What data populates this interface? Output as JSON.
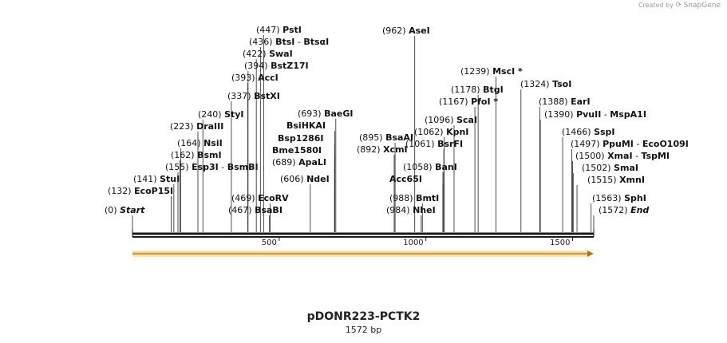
{
  "credit": {
    "created_by": "Created by",
    "brand": "SnapGene"
  },
  "plasmid": {
    "name": "pDONR223-PCTK2",
    "length_label": "1572 bp",
    "length": 1572
  },
  "ruler": {
    "ticks": [
      500,
      1000,
      1500
    ]
  },
  "feature": {
    "start": 1,
    "end": 1572,
    "color": "#f2c35c"
  },
  "sites": [
    {
      "pos": "(0)",
      "name": "Start",
      "bp": 0,
      "style": "endpoint"
    },
    {
      "pos": "(132)",
      "name": "EcoP15I",
      "bp": 132
    },
    {
      "pos": "(141)",
      "name": "StuI",
      "bp": 141
    },
    {
      "pos": "(155)",
      "name": "Esp3I",
      "name2": "BsmBI",
      "bp": 155
    },
    {
      "pos": "(162)",
      "name": "BsmI",
      "bp": 162
    },
    {
      "pos": "(164)",
      "name": "NsiI",
      "bp": 164
    },
    {
      "pos": "(223)",
      "name": "DraIII",
      "bp": 223
    },
    {
      "pos": "(240)",
      "name": "StyI",
      "bp": 240
    },
    {
      "pos": "(337)",
      "name": "BstXI",
      "bp": 337
    },
    {
      "pos": "(393)",
      "name": "AccI",
      "bp": 393
    },
    {
      "pos": "(394)",
      "name": "BstZ17I",
      "bp": 394
    },
    {
      "pos": "(422)",
      "name": "SwaI",
      "bp": 422
    },
    {
      "pos": "(436)",
      "name": "BtsI",
      "name2": "BtsαI",
      "bp": 436
    },
    {
      "pos": "(447)",
      "name": "PstI",
      "bp": 447
    },
    {
      "pos": "(467)",
      "name": "BsaBI",
      "bp": 467
    },
    {
      "pos": "(469)",
      "name": "EcoRV",
      "bp": 469
    },
    {
      "pos": "(606)",
      "name": "NdeI",
      "bp": 606
    },
    {
      "pos": "(689)",
      "name": "ApaLI",
      "bp": 689
    },
    {
      "pos": "",
      "name": "Bme1580I",
      "bp": 689
    },
    {
      "pos": "",
      "name": "Bsp1286I",
      "bp": 689
    },
    {
      "pos": "",
      "name": "BsiHKAI",
      "bp": 689
    },
    {
      "pos": "(693)",
      "name": "BaeGI",
      "bp": 693
    },
    {
      "pos": "(892)",
      "name": "XcmI",
      "bp": 892
    },
    {
      "pos": "(895)",
      "name": "BsaAI",
      "bp": 895
    },
    {
      "pos": "(962)",
      "name": "AseI",
      "bp": 962
    },
    {
      "pos": "(984)",
      "name": "NheI",
      "bp": 984
    },
    {
      "pos": "(988)",
      "name": "BmtI",
      "bp": 988
    },
    {
      "pos": "",
      "name": "Acc65I",
      "bp": 1058
    },
    {
      "pos": "(1058)",
      "name": "BanI",
      "bp": 1058
    },
    {
      "pos": "(1061)",
      "name": "BsrFI",
      "bp": 1061
    },
    {
      "pos": "(1062)",
      "name": "KpnI",
      "bp": 1062
    },
    {
      "pos": "(1096)",
      "name": "ScaI",
      "bp": 1096
    },
    {
      "pos": "(1167)",
      "name": "PfoI",
      "star": "*",
      "bp": 1167
    },
    {
      "pos": "(1178)",
      "name": "BtgI",
      "bp": 1178
    },
    {
      "pos": "(1239)",
      "name": "MscI",
      "star": "*",
      "bp": 1239
    },
    {
      "pos": "(1324)",
      "name": "TsoI",
      "bp": 1324
    },
    {
      "pos": "(1388)",
      "name": "EarI",
      "bp": 1388
    },
    {
      "pos": "(1390)",
      "name": "PvuII",
      "name2": "MspA1I",
      "bp": 1390
    },
    {
      "pos": "(1466)",
      "name": "SspI",
      "bp": 1466
    },
    {
      "pos": "(1497)",
      "name": "PpuMI",
      "name2": "EcoO109I",
      "bp": 1497
    },
    {
      "pos": "(1500)",
      "name": "XmaI",
      "name2": "TspMI",
      "bp": 1500
    },
    {
      "pos": "(1502)",
      "name": "SmaI",
      "bp": 1502
    },
    {
      "pos": "(1515)",
      "name": "XmnI",
      "bp": 1515
    },
    {
      "pos": "(1563)",
      "name": "SphI",
      "bp": 1563
    },
    {
      "pos": "(1572)",
      "name": "End",
      "bp": 1572,
      "style": "endpoint"
    }
  ]
}
